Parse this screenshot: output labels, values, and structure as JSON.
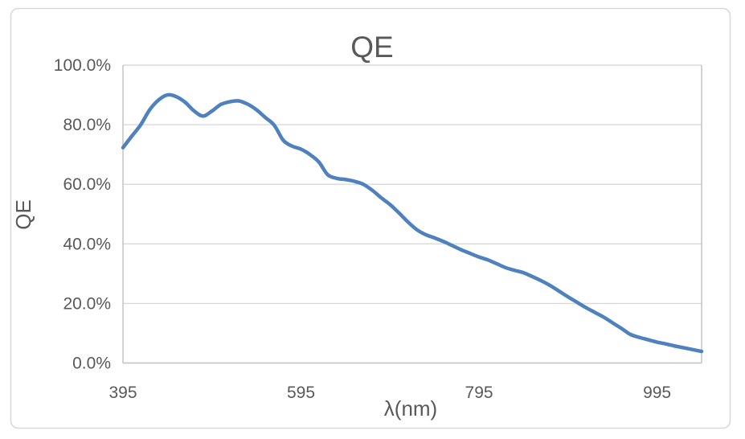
{
  "window": {
    "background_color": "#ffffff",
    "border_color": "#d9d9d9"
  },
  "chart_data": {
    "type": "line",
    "title": "QE",
    "xlabel": "λ(nm)",
    "ylabel": "QE",
    "legend_position": "none",
    "grid": true,
    "smooth_line": true,
    "line_color": "#4e81bd",
    "gridline_color": "#d9d9d9",
    "axis_color": "#bfbfbf",
    "text_color": "#595959",
    "xlim": [
      395,
      1045
    ],
    "ylim": [
      0,
      100
    ],
    "x_ticks": [
      395,
      595,
      795,
      995
    ],
    "x_tick_labels": [
      "395",
      "595",
      "795",
      "995"
    ],
    "y_ticks": [
      0,
      20,
      40,
      60,
      80,
      100
    ],
    "y_tick_labels": [
      "0.0%",
      "20.0%",
      "40.0%",
      "60.0%",
      "80.0%",
      "100.0%"
    ],
    "series": [
      {
        "name": "QE",
        "unit": "percent",
        "x": [
          395,
          405,
          415,
          425,
          435,
          445,
          455,
          465,
          475,
          485,
          495,
          505,
          515,
          525,
          535,
          545,
          555,
          565,
          575,
          585,
          595,
          605,
          615,
          625,
          635,
          645,
          655,
          665,
          675,
          685,
          695,
          705,
          715,
          725,
          735,
          745,
          755,
          765,
          775,
          785,
          795,
          805,
          815,
          825,
          835,
          845,
          855,
          865,
          875,
          885,
          895,
          905,
          915,
          925,
          935,
          945,
          955,
          965,
          975,
          985,
          995,
          1005,
          1015,
          1025,
          1035,
          1045
        ],
        "y": [
          72.3,
          76.2,
          80.0,
          85.0,
          88.3,
          90.0,
          89.4,
          87.5,
          84.6,
          82.9,
          84.6,
          86.8,
          87.7,
          88.0,
          86.9,
          85.0,
          82.4,
          79.8,
          74.8,
          72.8,
          71.8,
          70.0,
          67.5,
          63.2,
          62.0,
          61.6,
          61.0,
          60.0,
          58.0,
          55.5,
          53.2,
          50.4,
          47.4,
          44.8,
          43.1,
          42.0,
          40.8,
          39.4,
          38.0,
          36.8,
          35.6,
          34.6,
          33.3,
          32.0,
          31.1,
          30.3,
          29.0,
          27.6,
          26.0,
          24.1,
          22.2,
          20.4,
          18.6,
          17.0,
          15.4,
          13.5,
          11.6,
          9.6,
          8.6,
          7.8,
          7.0,
          6.4,
          5.7,
          5.1,
          4.5,
          3.9
        ]
      }
    ]
  }
}
